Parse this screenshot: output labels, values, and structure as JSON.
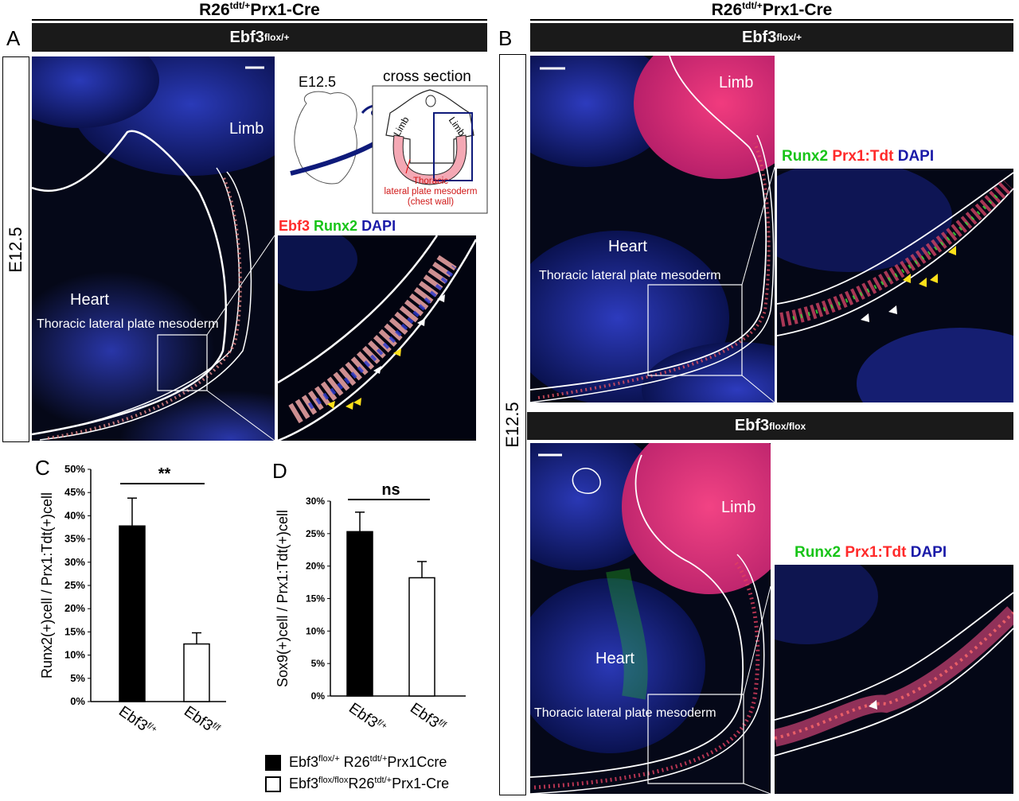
{
  "header_left": "R26tdt/+Prx1-Cre",
  "header_right": "R26tdt/+Prx1-Cre",
  "panel_a": {
    "letter": "A",
    "bar_label": "Ebf3flox/+",
    "stage": "E12.5",
    "limb": "Limb",
    "heart": "Heart",
    "region": "Thoracic lateral plate mesoderm",
    "schematic": {
      "stage": "E12.5",
      "title": "cross section",
      "limb_left": "Limb",
      "limb_right": "Limb",
      "caption_line1": "Thoracic",
      "caption_line2": "lateral plate mesoderm",
      "caption_line3": "(chest wall)"
    },
    "stain_labels": [
      {
        "text": "Ebf3",
        "color": "#ff2a2a"
      },
      {
        "text": "Runx2",
        "color": "#18c418"
      },
      {
        "text": "DAPI",
        "color": "#1a1aa8"
      }
    ]
  },
  "panel_b": {
    "letter": "B",
    "bar_label_top": "Ebf3flox/+",
    "bar_label_bottom": "Ebf3flox/flox",
    "stage": "E12.5",
    "limb": "Limb",
    "heart": "Heart",
    "region": "Thoracic lateral plate mesoderm",
    "limb_2": "Limb",
    "heart_2": "Heart",
    "region_2": "Thoracic lateral plate mesoderm",
    "stain_labels": [
      {
        "text": "Runx2",
        "color": "#18c418"
      },
      {
        "text": "Prx1:Tdt",
        "color": "#ff2a2a"
      },
      {
        "text": "DAPI",
        "color": "#1a1aa8"
      }
    ]
  },
  "chart_data": [
    {
      "panel": "C",
      "type": "bar",
      "categories": [
        "Ebf3f/+",
        "Ebf3f/f"
      ],
      "values": [
        37.8,
        12.4
      ],
      "errors": [
        6.0,
        2.4
      ],
      "fills": [
        "#000000",
        "#ffffff"
      ],
      "ylabel": "Runx2(+)cell / Prx1:Tdt(+)cell",
      "ylim": [
        0,
        50
      ],
      "yticks": [
        "0%",
        "5%",
        "10%",
        "15%",
        "20%",
        "25%",
        "30%",
        "35%",
        "40%",
        "45%",
        "50%"
      ],
      "significance": "**"
    },
    {
      "panel": "D",
      "type": "bar",
      "categories": [
        "Ebf3f/+",
        "Ebf3f/f"
      ],
      "values": [
        25.3,
        18.2
      ],
      "errors": [
        3.0,
        2.5
      ],
      "fills": [
        "#000000",
        "#ffffff"
      ],
      "ylabel": "Sox9(+)cell / Prx1:Tdt(+)cell",
      "ylim": [
        0,
        30
      ],
      "yticks": [
        "0%",
        "5%",
        "10%",
        "15%",
        "20%",
        "25%",
        "30%"
      ],
      "significance": "ns"
    }
  ],
  "legend": [
    {
      "text": "Ebf3flox/+ R26tdt/+Prx1Ccre",
      "fill": "#000000"
    },
    {
      "text": "Ebf3flox/floxR26tdt/+Prx1-Cre",
      "fill": "#ffffff"
    }
  ]
}
